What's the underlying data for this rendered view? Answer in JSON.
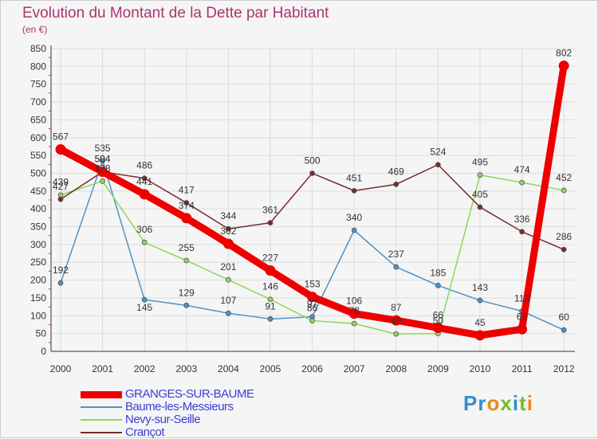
{
  "title": "Evolution du Montant de la Dette par Habitant",
  "subtitle": "(en €)",
  "brand": {
    "letters": [
      {
        "ch": "P",
        "color": "#2f8fd0"
      },
      {
        "ch": "r",
        "color": "#2f8fd0"
      },
      {
        "ch": "o",
        "color": "#e8891a"
      },
      {
        "ch": "x",
        "color": "#7cb82f"
      },
      {
        "ch": "i",
        "color": "#2f8fd0"
      },
      {
        "ch": "t",
        "color": "#7cb82f"
      },
      {
        "ch": "i",
        "color": "#e8891a"
      }
    ]
  },
  "chart_data": {
    "type": "line",
    "title": "Evolution du Montant de la Dette par Habitant",
    "subtitle": "(en €)",
    "xlabel": "",
    "ylabel": "",
    "x": [
      "2000",
      "2001",
      "2002",
      "2003",
      "2004",
      "2005",
      "2006",
      "2007",
      "2008",
      "2009",
      "2010",
      "2011",
      "2012"
    ],
    "ylim": [
      0,
      850
    ],
    "yticks": [
      0,
      50,
      100,
      150,
      200,
      250,
      300,
      350,
      400,
      450,
      500,
      550,
      600,
      650,
      700,
      750,
      800,
      850
    ],
    "grid": true,
    "legend_position": "bottom-left",
    "series": [
      {
        "name": "GRANGES-SUR-BAUME",
        "color": "#ee0000",
        "values": [
          567,
          504,
          441,
          374,
          302,
          227,
          153,
          106,
          87,
          66,
          45,
          62,
          802
        ],
        "labels": [
          "567",
          "504",
          "441",
          "374",
          "302",
          "227",
          "153",
          "106",
          "87",
          "66",
          "45",
          "62",
          "802"
        ]
      },
      {
        "name": "Baume-les-Messieurs",
        "color": "#4d93c7",
        "values": [
          192,
          535,
          145,
          129,
          107,
          91,
          97,
          340,
          237,
          185,
          143,
          113,
          60
        ],
        "labels": [
          "192",
          "535",
          "145",
          "129",
          "107",
          "91",
          "97",
          "340",
          "237",
          "185",
          "143",
          "113",
          "60"
        ]
      },
      {
        "name": "Nevy-sur-Seille",
        "color": "#8fd65a",
        "values": [
          439,
          478,
          306,
          255,
          201,
          146,
          86,
          78,
          49,
          50,
          495,
          474,
          452
        ],
        "labels": [
          "439",
          "478",
          "306",
          "255",
          "201",
          "146",
          "86",
          "78",
          "49",
          "50",
          "495",
          "474",
          "452"
        ]
      },
      {
        "name": "Crançot",
        "color": "#7a2a2a",
        "values": [
          427,
          504,
          486,
          417,
          344,
          361,
          500,
          451,
          469,
          524,
          405,
          336,
          286
        ],
        "labels": [
          "427",
          "504",
          "486",
          "417",
          "344",
          "361",
          "500",
          "451",
          "469",
          "524",
          "405",
          "336",
          "286"
        ]
      }
    ],
    "label_offsets": {
      "GRANGES-SUR-BAUME": [
        -12,
        -12,
        -12,
        -12,
        -12,
        -12,
        -12,
        -12,
        -12,
        -12,
        -12,
        -12,
        -12
      ],
      "Baume-les-Messieurs": [
        -12,
        -12,
        14,
        -12,
        -12,
        -12,
        -12,
        -12,
        -12,
        -12,
        -12,
        -12,
        -12
      ],
      "Nevy-sur-Seille": [
        -12,
        -12,
        -12,
        -12,
        -12,
        -12,
        -12,
        -12,
        -12,
        -12,
        -12,
        -12,
        -12
      ],
      "Crançot": [
        -12,
        -12,
        -12,
        -12,
        -12,
        -12,
        -12,
        -12,
        -12,
        -12,
        -12,
        -12,
        -12
      ]
    }
  }
}
